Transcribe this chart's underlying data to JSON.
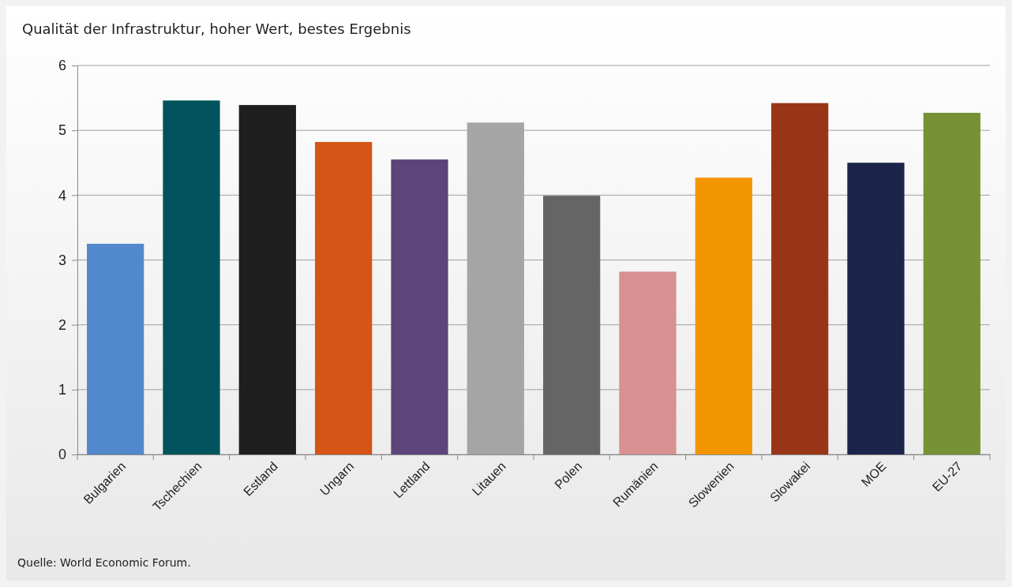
{
  "chart_data": {
    "type": "bar",
    "title": "Qualität der Infrastruktur, hoher Wert, bestes Ergebnis",
    "categories": [
      "Bulgarien",
      "Tschechien",
      "Estland",
      "Ungarn",
      "Lettland",
      "Litauen",
      "Polen",
      "Rumänien",
      "Slowenien",
      "Slowakei",
      "MOE",
      "EU-27"
    ],
    "values": [
      3.25,
      5.46,
      5.39,
      4.82,
      4.55,
      5.12,
      3.99,
      2.82,
      4.27,
      5.42,
      4.5,
      5.27
    ],
    "colors": [
      "#5189cc",
      "#00535d",
      "#1e1e1e",
      "#d45515",
      "#5d4479",
      "#a5a5a5",
      "#656565",
      "#d89090",
      "#f39500",
      "#993517",
      "#1c2449",
      "#779234"
    ],
    "ylim": [
      0,
      6
    ],
    "yticks": [
      0,
      1,
      2,
      3,
      4,
      5,
      6
    ],
    "grid": "y",
    "annotations": [
      "Quelle:  World Economic Forum."
    ]
  }
}
